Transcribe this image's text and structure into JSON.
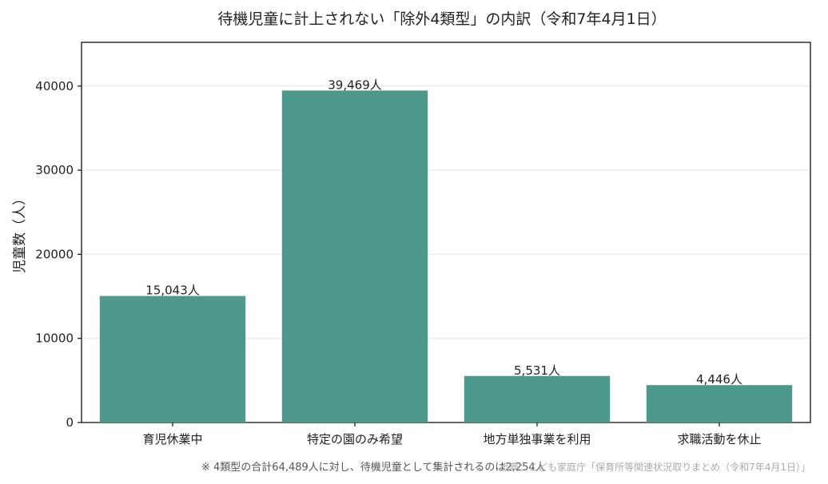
{
  "chart_data": {
    "type": "bar",
    "title": "待機児童に計上されない「除外4類型」の内訳（令和7年4月1日）",
    "xlabel": "",
    "ylabel": "児童数（人）",
    "categories": [
      "育児休業中",
      "特定の園のみ希望",
      "地方単独事業を利用",
      "求職活動を休止"
    ],
    "values": [
      15043,
      39469,
      5531,
      4446
    ],
    "data_labels": [
      "15,043人",
      "39,469人",
      "5,531人",
      "4,446人"
    ],
    "ylim": [
      0,
      45200
    ],
    "yticks": [
      0,
      10000,
      20000,
      30000,
      40000
    ],
    "ytick_labels": [
      "0",
      "10000",
      "20000",
      "30000",
      "40000"
    ],
    "grid": "horizontal",
    "bar_color": "#4d9a8c"
  },
  "footnote": "※ 4類型の合計64,489人に対し、待機児童として集計されるのは2,254人",
  "source": "出典：こども家庭庁「保育所等関連状況取りまとめ（令和7年4月1日）」"
}
